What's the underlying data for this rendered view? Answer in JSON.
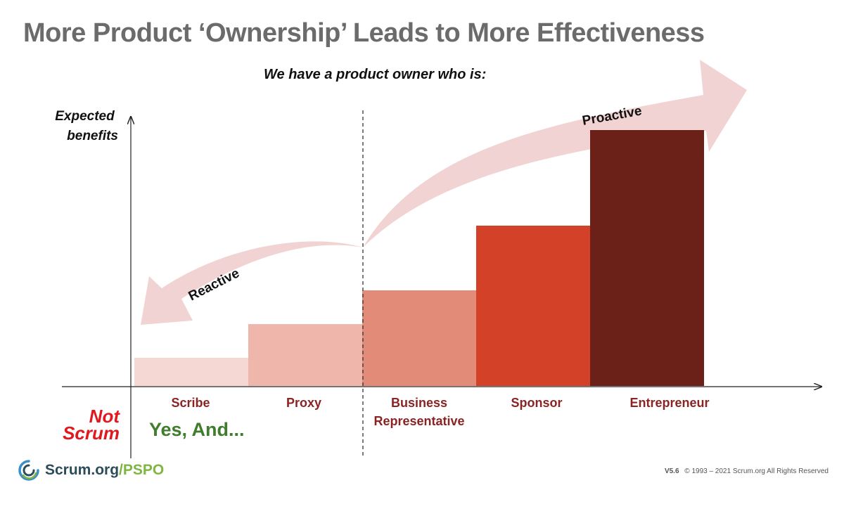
{
  "title": "More Product ‘Ownership’ Leads to More Effectiveness",
  "subtitle": "We have a product owner who is:",
  "colors": {
    "title": "#6b6b6b",
    "arrow": "#f2d3d3",
    "not_scrum": "#e0191f",
    "yes_and": "#3f7d2c",
    "category_label": "#8b2323"
  },
  "chart_data": {
    "type": "bar",
    "ylabel": [
      "Expected",
      "benefits"
    ],
    "xlabel": "",
    "ylim": [
      0,
      9
    ],
    "categories": [
      "Scribe",
      "Proxy",
      "Business Representative",
      "Sponsor",
      "Entrepreneur"
    ],
    "category_lines": [
      [
        "Scribe"
      ],
      [
        "Proxy"
      ],
      [
        "Business",
        "Representative"
      ],
      [
        "Sponsor"
      ],
      [
        "Entrepreneur"
      ]
    ],
    "values": [
      1,
      2.2,
      3.4,
      5.7,
      9.1
    ],
    "bar_colors": [
      "#f5d7d4",
      "#efb7ab",
      "#e38b79",
      "#d34128",
      "#6b2118"
    ],
    "divider_after_category": 1,
    "annotations": {
      "reactive": "Reactive",
      "proactive": "Proactive"
    }
  },
  "labels": {
    "not_scrum": [
      "Not",
      "Scrum"
    ],
    "yes_and": "Yes, And..."
  },
  "logo": {
    "icon": "scrum-swirl-icon",
    "text_main": "Scrum.org",
    "text_suffix": "/PSPO"
  },
  "footer": {
    "version": "V5.6",
    "copyright": "© 1993 – 2021 Scrum.org All Rights Reserved"
  }
}
